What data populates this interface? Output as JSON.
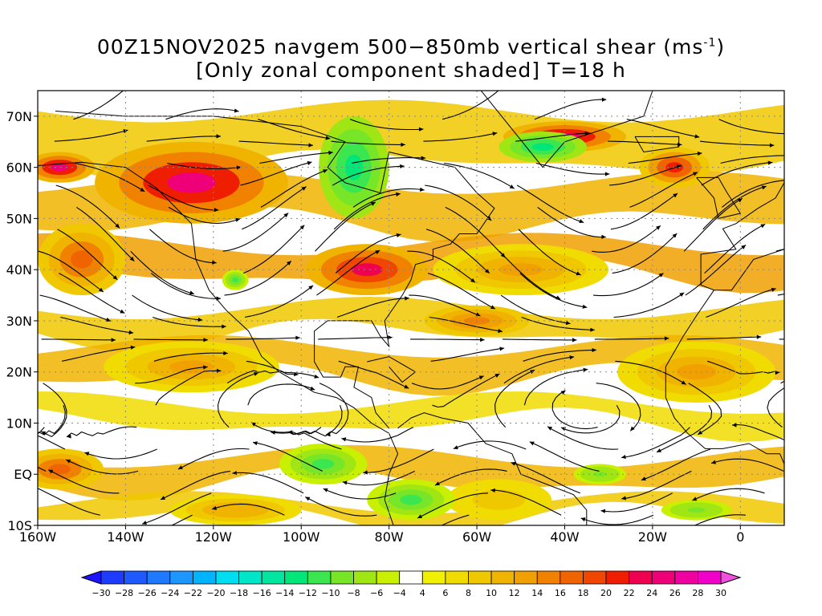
{
  "title": {
    "line1_prefix": "00Z15NOV2025 navgem 500−850mb vertical shear (ms",
    "line1_sup": "-1",
    "line1_suffix": ")",
    "line2": "[Only zonal component shaded] T=18 h"
  },
  "map": {
    "lon_range": [
      -160,
      10
    ],
    "lat_range": [
      -10,
      75
    ],
    "lat_labels": [
      "70N",
      "60N",
      "50N",
      "40N",
      "30N",
      "20N",
      "10N",
      "EQ",
      "10S"
    ],
    "lat_values": [
      70,
      60,
      50,
      40,
      30,
      20,
      10,
      0,
      -10
    ],
    "lon_labels": [
      "160W",
      "140W",
      "120W",
      "100W",
      "80W",
      "60W",
      "40W",
      "20W",
      "0"
    ],
    "lon_values": [
      -160,
      -140,
      -120,
      -100,
      -80,
      -60,
      -40,
      -20,
      0
    ],
    "gridlines": "dotted"
  },
  "colorbar": {
    "labels": [
      "-30",
      "-28",
      "-26",
      "-24",
      "-22",
      "-20",
      "-18",
      "-16",
      "-14",
      "-12",
      "-10",
      "-8",
      "-6",
      "-4",
      "4",
      "6",
      "8",
      "10",
      "12",
      "14",
      "16",
      "18",
      "20",
      "22",
      "24",
      "26",
      "28",
      "30"
    ],
    "colors": [
      "#1e14ff",
      "#1e3cff",
      "#1e5aff",
      "#1e7aff",
      "#1e96ff",
      "#00b4ff",
      "#00dcf0",
      "#00e6c8",
      "#00e6a0",
      "#00e678",
      "#3ce650",
      "#78e628",
      "#a0e614",
      "#c8f000",
      "#ffffff",
      "#f0f000",
      "#f0dc00",
      "#f0c800",
      "#f0b400",
      "#f0a000",
      "#f08200",
      "#f06400",
      "#f04600",
      "#f01e00",
      "#f00050",
      "#f00078",
      "#f000a0",
      "#f000c8",
      "#f050dc"
    ]
  },
  "shading": {
    "positive_regions": [
      {
        "lon": -125,
        "lat": 57,
        "rx": 22,
        "ry": 8,
        "level": 26
      },
      {
        "lon": -85,
        "lat": 40,
        "rx": 14,
        "ry": 5,
        "level": 24
      },
      {
        "lon": -155,
        "lat": 60,
        "rx": 8,
        "ry": 3,
        "level": 26
      },
      {
        "lon": -40,
        "lat": 66,
        "rx": 14,
        "ry": 3,
        "level": 26
      },
      {
        "lon": -15,
        "lat": 60,
        "rx": 8,
        "ry": 4,
        "level": 22
      },
      {
        "lon": -150,
        "lat": 42,
        "rx": 10,
        "ry": 7,
        "level": 18
      },
      {
        "lon": -155,
        "lat": 1,
        "rx": 10,
        "ry": 4,
        "level": 18
      },
      {
        "lon": -125,
        "lat": 21,
        "rx": 20,
        "ry": 5,
        "level": 14
      },
      {
        "lon": -50,
        "lat": 40,
        "rx": 20,
        "ry": 5,
        "level": 14
      },
      {
        "lon": -60,
        "lat": 30,
        "rx": 12,
        "ry": 3,
        "level": 16
      },
      {
        "lon": -10,
        "lat": 20,
        "rx": 18,
        "ry": 6,
        "level": 14
      },
      {
        "lon": -115,
        "lat": -7,
        "rx": 15,
        "ry": 3,
        "level": 12
      },
      {
        "lon": -55,
        "lat": -5,
        "rx": 12,
        "ry": 4,
        "level": 10
      }
    ],
    "negative_regions": [
      {
        "lon": -88,
        "lat": 60,
        "rx": 8,
        "ry": 10,
        "level": -12
      },
      {
        "lon": -45,
        "lat": 64,
        "rx": 10,
        "ry": 3,
        "level": -12
      },
      {
        "lon": -95,
        "lat": 2,
        "rx": 10,
        "ry": 4,
        "level": -10
      },
      {
        "lon": -75,
        "lat": -5,
        "rx": 10,
        "ry": 4,
        "level": -10
      },
      {
        "lon": -32,
        "lat": 0,
        "rx": 6,
        "ry": 2,
        "level": -8
      },
      {
        "lon": -10,
        "lat": -7,
        "rx": 8,
        "ry": 2,
        "level": -8
      },
      {
        "lon": -115,
        "lat": 38,
        "rx": 3,
        "ry": 2,
        "level": -10
      }
    ]
  }
}
